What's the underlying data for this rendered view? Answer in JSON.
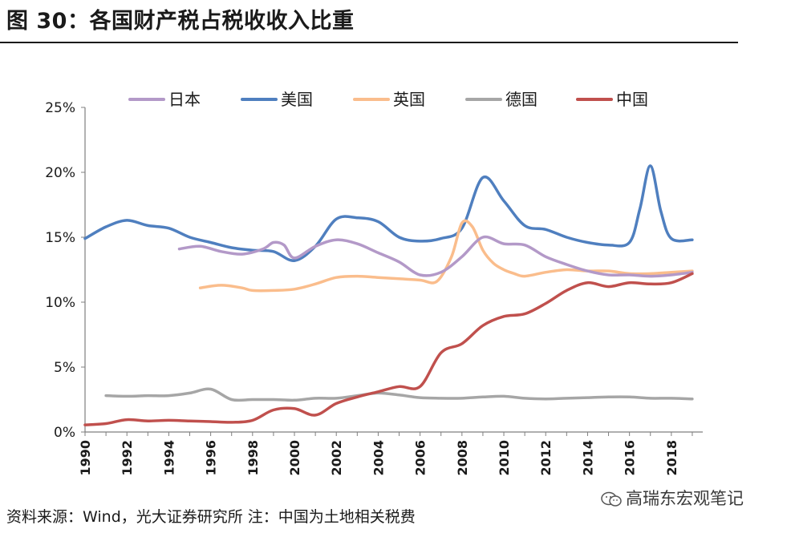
{
  "title": "图 30：各国财产税占税收收入比重",
  "source": "资料来源：Wind，光大证券研究所 注：中国为土地相关税费",
  "watermark": "高瑞东宏观笔记",
  "chart_data": {
    "type": "line",
    "title": "",
    "xlabel": "",
    "ylabel": "",
    "ylim": [
      0,
      25
    ],
    "y_ticks": [
      "0%",
      "5%",
      "10%",
      "15%",
      "20%",
      "25%"
    ],
    "y_tick_values": [
      0,
      5,
      10,
      15,
      20,
      25
    ],
    "x_ticks": [
      "1990",
      "1992",
      "1994",
      "1996",
      "1998",
      "2000",
      "2002",
      "2004",
      "2006",
      "2008",
      "2010",
      "2012",
      "2014",
      "2016",
      "2018"
    ],
    "x_tick_values": [
      1990,
      1992,
      1994,
      1996,
      1998,
      2000,
      2002,
      2004,
      2006,
      2008,
      2010,
      2012,
      2014,
      2016,
      2018
    ],
    "xlim": [
      1990,
      2019.5
    ],
    "grid": false,
    "legend_position": "top",
    "series": [
      {
        "name": "日本",
        "color": "#b399c8",
        "x": [
          1994.5,
          1995.5,
          1996.5,
          1997.5,
          1998.5,
          1999,
          1999.5,
          2000,
          2001,
          2002,
          2003,
          2004,
          2005,
          2006,
          2007,
          2008,
          2009,
          2010,
          2011,
          2012,
          2013,
          2014,
          2015,
          2016,
          2017,
          2018,
          2019
        ],
        "y": [
          14.1,
          14.3,
          13.9,
          13.7,
          14.1,
          14.6,
          14.4,
          13.4,
          14.3,
          14.8,
          14.5,
          13.8,
          13.1,
          12.1,
          12.3,
          13.5,
          15.0,
          14.5,
          14.4,
          13.5,
          12.9,
          12.4,
          12.1,
          12.1,
          12.0,
          12.1,
          12.3
        ]
      },
      {
        "name": "美国",
        "color": "#4f7fbf",
        "x": [
          1990,
          1991,
          1992,
          1993,
          1994,
          1995,
          1996,
          1997,
          1998,
          1999,
          2000,
          2001,
          2002,
          2003,
          2004,
          2005,
          2006,
          2007,
          2008,
          2009,
          2010,
          2011,
          2012,
          2013,
          2014,
          2015,
          2016,
          2016.5,
          2017,
          2017.5,
          2018,
          2019
        ],
        "y": [
          14.9,
          15.8,
          16.3,
          15.9,
          15.7,
          15.0,
          14.6,
          14.2,
          14.0,
          13.9,
          13.2,
          14.3,
          16.4,
          16.5,
          16.2,
          15.0,
          14.7,
          14.9,
          15.7,
          19.6,
          17.8,
          15.9,
          15.6,
          15.0,
          14.6,
          14.4,
          14.6,
          17.2,
          20.5,
          17.0,
          14.9,
          14.8
        ]
      },
      {
        "name": "英国",
        "color": "#fabd8c",
        "x": [
          1995.5,
          1996.5,
          1997.5,
          1998,
          1999,
          2000,
          2001,
          2002,
          2003,
          2004,
          2005,
          2006,
          2006.8,
          2007.5,
          2008,
          2008.5,
          2009,
          2009.5,
          2010,
          2010.5,
          2011,
          2012,
          2013,
          2014,
          2015,
          2016,
          2017,
          2018,
          2019
        ],
        "y": [
          11.1,
          11.3,
          11.1,
          10.9,
          10.9,
          11.0,
          11.4,
          11.9,
          12.0,
          11.9,
          11.8,
          11.7,
          11.6,
          13.5,
          16.1,
          15.8,
          14.0,
          13.0,
          12.5,
          12.2,
          12.0,
          12.3,
          12.5,
          12.4,
          12.4,
          12.2,
          12.2,
          12.3,
          12.4
        ]
      },
      {
        "name": "德国",
        "color": "#a6a6a6",
        "x": [
          1991,
          1992,
          1993,
          1994,
          1995,
          1996,
          1997,
          1998,
          1999,
          2000,
          2001,
          2002,
          2003,
          2004,
          2005,
          2006,
          2007,
          2008,
          2009,
          2010,
          2011,
          2012,
          2013,
          2014,
          2015,
          2016,
          2017,
          2018,
          2019
        ],
        "y": [
          2.8,
          2.75,
          2.8,
          2.8,
          3.0,
          3.3,
          2.5,
          2.5,
          2.5,
          2.45,
          2.6,
          2.6,
          2.8,
          3.0,
          2.85,
          2.65,
          2.6,
          2.6,
          2.7,
          2.75,
          2.6,
          2.55,
          2.6,
          2.65,
          2.7,
          2.7,
          2.6,
          2.6,
          2.55
        ]
      },
      {
        "name": "中国",
        "color": "#c0504d",
        "x": [
          1990,
          1991,
          1992,
          1993,
          1994,
          1995,
          1996,
          1997,
          1998,
          1999,
          2000,
          2001,
          2002,
          2003,
          2004,
          2005,
          2006,
          2007,
          2008,
          2009,
          2010,
          2011,
          2012,
          2013,
          2014,
          2015,
          2016,
          2017,
          2018,
          2019
        ],
        "y": [
          0.55,
          0.65,
          0.95,
          0.85,
          0.9,
          0.85,
          0.8,
          0.75,
          0.9,
          1.7,
          1.8,
          1.3,
          2.2,
          2.7,
          3.1,
          3.5,
          3.5,
          6.1,
          6.8,
          8.2,
          8.9,
          9.1,
          9.9,
          10.9,
          11.5,
          11.2,
          11.5,
          11.4,
          11.5,
          12.2
        ]
      }
    ]
  }
}
